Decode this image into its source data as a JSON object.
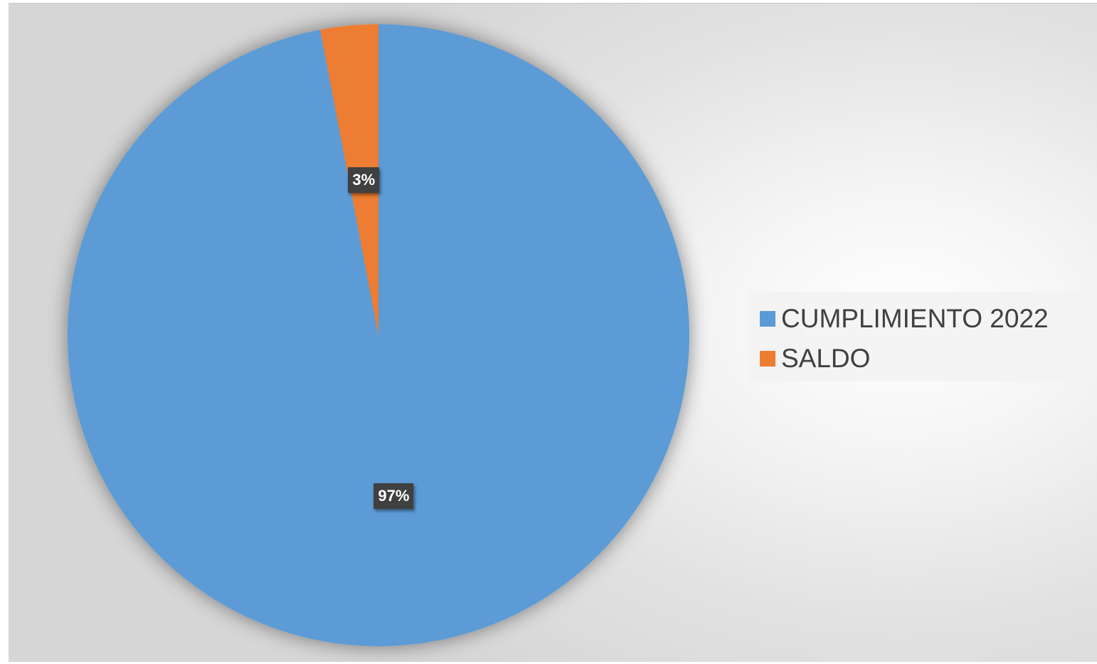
{
  "chart_data": {
    "type": "pie",
    "title": "",
    "slices": [
      {
        "name": "CUMPLIMIENTO 2022",
        "value": 97,
        "label": "97%",
        "color": "#5b9bd5"
      },
      {
        "name": "SALDO",
        "value": 3,
        "label": "3%",
        "color": "#ed7d31"
      }
    ],
    "start_angle_deg": 0,
    "direction": "clockwise",
    "legend_position": "right"
  }
}
